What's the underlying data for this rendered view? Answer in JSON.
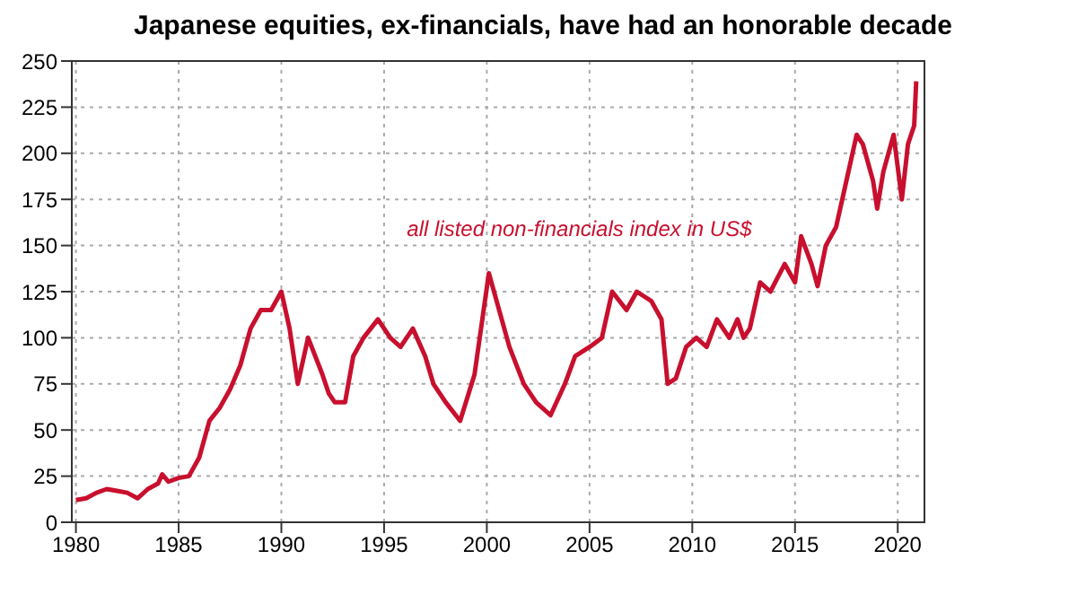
{
  "chart_data": {
    "type": "line",
    "title": "Japanese equities, ex-financials, have had an honorable decade",
    "series": [
      {
        "name": "all listed non-financials index in US$",
        "color": "#c8102e",
        "x": [
          1980,
          1980.5,
          1981,
          1981.5,
          1982,
          1982.5,
          1983,
          1983.5,
          1984,
          1984.2,
          1984.5,
          1985,
          1985.5,
          1986,
          1986.5,
          1987,
          1987.5,
          1988,
          1988.5,
          1989,
          1989.5,
          1990,
          1990.4,
          1990.8,
          1991.3,
          1992,
          1992.3,
          1992.6,
          1993.1,
          1993.5,
          1994,
          1994.7,
          1995.3,
          1995.8,
          1996.4,
          1997,
          1997.4,
          1998,
          1998.7,
          1999.4,
          2000.1,
          2000.6,
          2001.1,
          2001.8,
          2002.4,
          2003.1,
          2003.8,
          2004.3,
          2005,
          2005.6,
          2006.1,
          2006.8,
          2007.3,
          2008,
          2008.5,
          2008.8,
          2009.2,
          2009.7,
          2010.2,
          2010.7,
          2011.2,
          2011.8,
          2012.2,
          2012.5,
          2012.8,
          2013.3,
          2013.8,
          2014.5,
          2015,
          2015.3,
          2015.8,
          2016.1,
          2016.5,
          2017,
          2017.5,
          2018,
          2018.3,
          2018.8,
          2019,
          2019.3,
          2019.8,
          2020.2,
          2020.5,
          2020.8,
          2020.9
        ],
        "values": [
          12,
          13,
          16,
          18,
          17,
          16,
          13,
          18,
          21,
          26,
          22,
          24,
          25,
          35,
          55,
          62,
          72,
          85,
          105,
          115,
          115,
          125,
          105,
          75,
          100,
          80,
          70,
          65,
          65,
          90,
          100,
          110,
          100,
          95,
          105,
          90,
          75,
          65,
          55,
          80,
          135,
          115,
          95,
          75,
          65,
          58,
          75,
          90,
          95,
          100,
          125,
          115,
          125,
          120,
          110,
          75,
          78,
          95,
          100,
          95,
          110,
          100,
          110,
          100,
          105,
          130,
          125,
          140,
          130,
          155,
          140,
          128,
          150,
          160,
          185,
          210,
          205,
          185,
          170,
          190,
          210,
          175,
          205,
          215,
          239
        ]
      }
    ],
    "xlim": [
      1979.8,
      2021.3
    ],
    "xticks": [
      1980,
      1985,
      1990,
      1995,
      2000,
      2005,
      2010,
      2015,
      2020
    ],
    "ylim": [
      0,
      250
    ],
    "yticks": [
      0,
      25,
      50,
      75,
      100,
      125,
      150,
      175,
      200,
      225,
      250
    ],
    "grid": true,
    "legend": false,
    "line_style": "solid",
    "marker": "none"
  }
}
